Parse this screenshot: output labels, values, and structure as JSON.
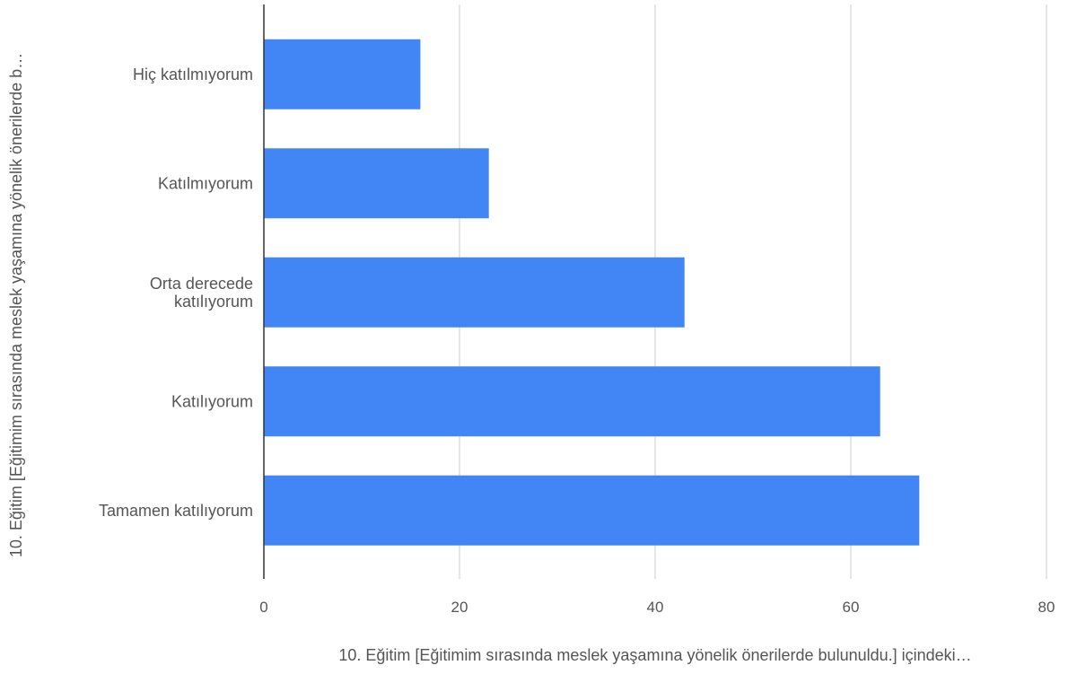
{
  "chart_data": {
    "type": "bar",
    "orientation": "horizontal",
    "categories": [
      [
        "Hiç katılmıyorum"
      ],
      [
        "Katılmıyorum"
      ],
      [
        "Orta derecede",
        "katılıyorum"
      ],
      [
        "Katılıyorum"
      ],
      [
        "Tamamen katılıyorum"
      ]
    ],
    "values": [
      16,
      23,
      43,
      63,
      67
    ],
    "xlabel": "10. Eğitim [Eğitimim sırasında meslek yaşamına yönelik önerilerde bulunuldu.] içindeki…",
    "ylabel": "10. Eğitim [Eğitimim sırasında meslek yaşamına yönelik önerilerde b…",
    "xlim": [
      0,
      80
    ],
    "xticks": [
      "0",
      "20",
      "40",
      "60",
      "80"
    ],
    "grid": true,
    "legend": "none",
    "bar_color": "#4285f4",
    "grid_color": "#cccccc",
    "axis_color": "#333333",
    "text_color": "#555555"
  }
}
